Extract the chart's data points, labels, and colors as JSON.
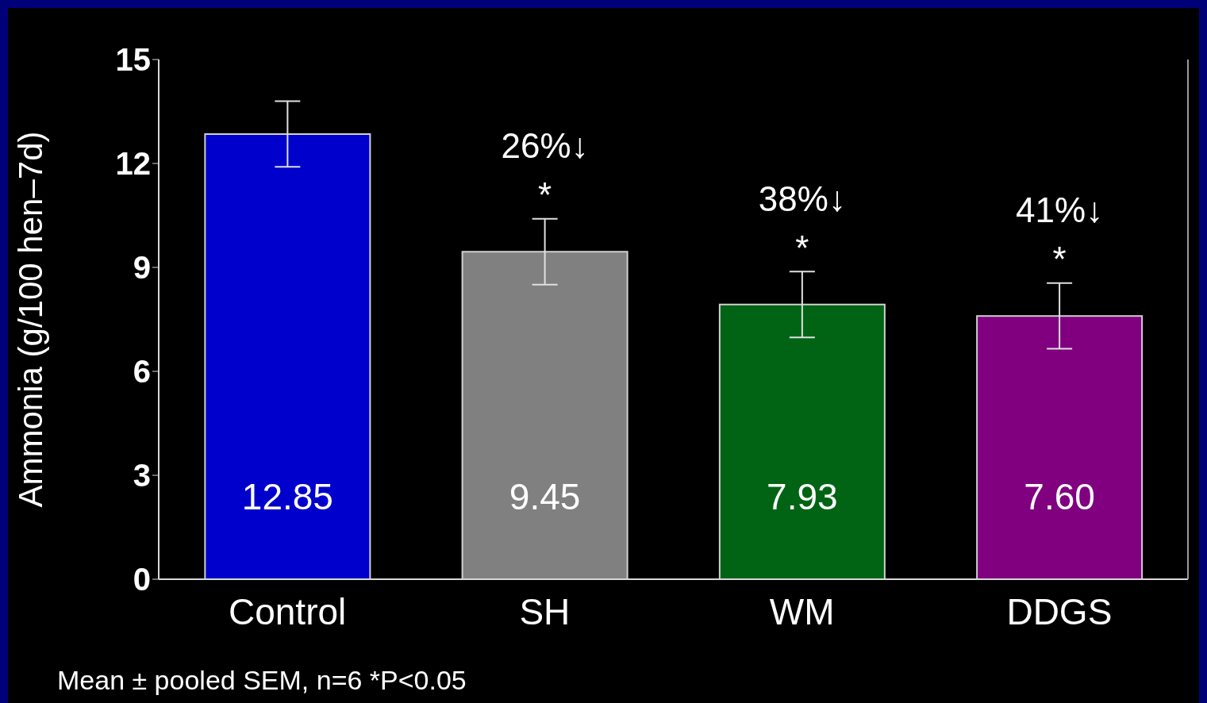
{
  "chart_data": {
    "type": "bar",
    "ylabel": "Ammonia (g/100 hen–7d)",
    "categories": [
      "Control",
      "SH",
      "WM",
      "DDGS"
    ],
    "values": [
      12.85,
      9.45,
      7.93,
      7.6
    ],
    "colors": [
      "#0000cc",
      "#808080",
      "#006414",
      "#800080"
    ],
    "value_labels": [
      "12.85",
      "9.45",
      "7.93",
      "7.60"
    ],
    "errors": [
      0.95,
      0.95,
      0.95,
      0.95
    ],
    "ylim": [
      0,
      15
    ],
    "yticks": [
      0,
      3,
      6,
      9,
      12,
      15
    ],
    "annotations": [
      {
        "text": "26%↓",
        "x": "SH",
        "y": 9.45
      },
      {
        "text": "*",
        "x": "SH",
        "y": 9.45
      },
      {
        "text": "38%↓",
        "x": "WM",
        "y": 7.93
      },
      {
        "text": "*",
        "x": "WM",
        "y": 7.93
      },
      {
        "text": "41%↓",
        "x": "DDGS",
        "y": 7.6
      },
      {
        "text": "*",
        "x": "DDGS",
        "y": 7.6
      },
      "Mean ± pooled SEM, n=6 *P<0.05"
    ]
  }
}
